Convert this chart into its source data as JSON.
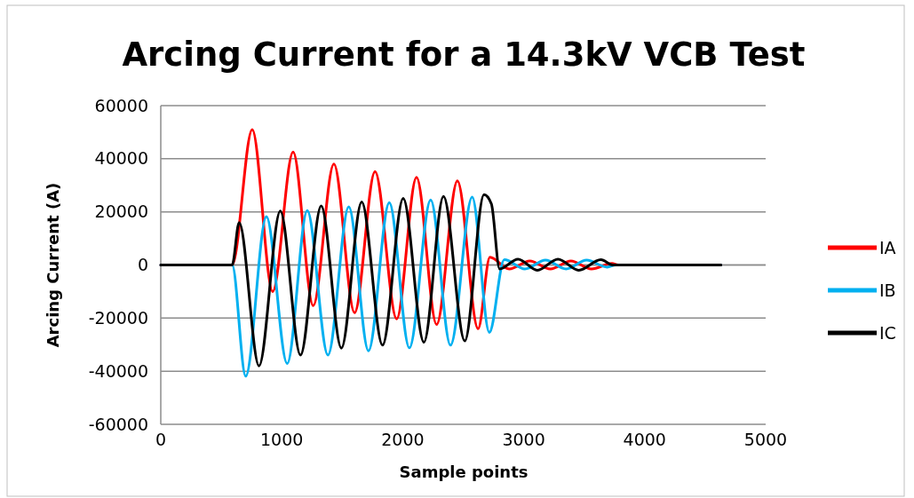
{
  "chart_data": {
    "type": "line",
    "title": "Arcing Current for a 14.3kV VCB Test",
    "xlabel": "Sample points",
    "ylabel": "Arcing Current (A)",
    "xlim": [
      0,
      5000
    ],
    "xticks": [
      0,
      1000,
      2000,
      3000,
      4000,
      5000
    ],
    "ylim": [
      -60000,
      60000
    ],
    "yticks": [
      -60000,
      -40000,
      -20000,
      0,
      20000,
      40000,
      60000
    ],
    "grid": "y",
    "legend": "right",
    "marker": "none",
    "line_style": "solid",
    "series": [
      {
        "name": "IA",
        "color": "#ff0000",
        "x": [
          0,
          590,
          756,
          925,
          1094,
          1260,
          1431,
          1602,
          1771,
          1950,
          2114,
          2280,
          2452,
          2623,
          2721,
          2880,
          3050,
          3220,
          3390,
          3560,
          3730,
          3780,
          4630
        ],
        "values": [
          0,
          0,
          51000,
          -10000,
          42500,
          -15300,
          38000,
          -18000,
          35200,
          -20300,
          33000,
          -22400,
          31700,
          -24000,
          2900,
          -1500,
          1500,
          -1500,
          1500,
          -1500,
          600,
          0,
          0
        ]
      },
      {
        "name": "IB",
        "color": "#00b0f0",
        "x": [
          0,
          590,
          702,
          873,
          1045,
          1211,
          1382,
          1554,
          1717,
          1889,
          2055,
          2231,
          2395,
          2574,
          2716,
          2840,
          3010,
          3180,
          3350,
          3520,
          3690,
          3760,
          4630
        ],
        "values": [
          0,
          0,
          -41900,
          18200,
          -37100,
          20500,
          -33900,
          21900,
          -32300,
          23500,
          -31200,
          24500,
          -30200,
          25600,
          -25400,
          2000,
          -1500,
          1800,
          -1500,
          1800,
          -800,
          0,
          0
        ]
      },
      {
        "name": "IC",
        "color": "#000000",
        "x": [
          0,
          590,
          648,
          812,
          988,
          1155,
          1326,
          1493,
          1661,
          1833,
          2004,
          2175,
          2337,
          2513,
          2672,
          2733,
          2801,
          2953,
          3113,
          3283,
          3455,
          3638,
          3736,
          4630
        ],
        "values": [
          0,
          0,
          16000,
          -38000,
          20300,
          -33900,
          22200,
          -31300,
          23700,
          -30200,
          25100,
          -29100,
          25800,
          -28600,
          26500,
          23000,
          -1500,
          2200,
          -2000,
          2200,
          -2000,
          2000,
          0,
          0
        ]
      }
    ]
  }
}
